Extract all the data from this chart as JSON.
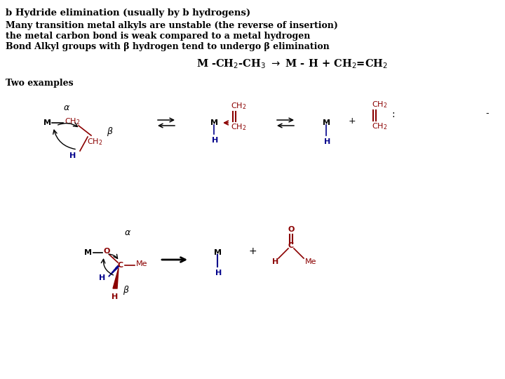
{
  "bg_color": "#ffffff",
  "title_text": "b Hydride elimination (usually by b hydrogens)",
  "body_text_line1": "Many transition metal alkyls are unstable (the reverse of insertion)",
  "body_text_line2": "the metal carbon bond is weak compared to a metal hydrogen",
  "body_text_line3": "Bond Alkyl groups with β hydrogen tend to undergo β elimination",
  "two_examples": "Two examples",
  "black": "#000000",
  "red": "#8B0000",
  "blue": "#00008B"
}
